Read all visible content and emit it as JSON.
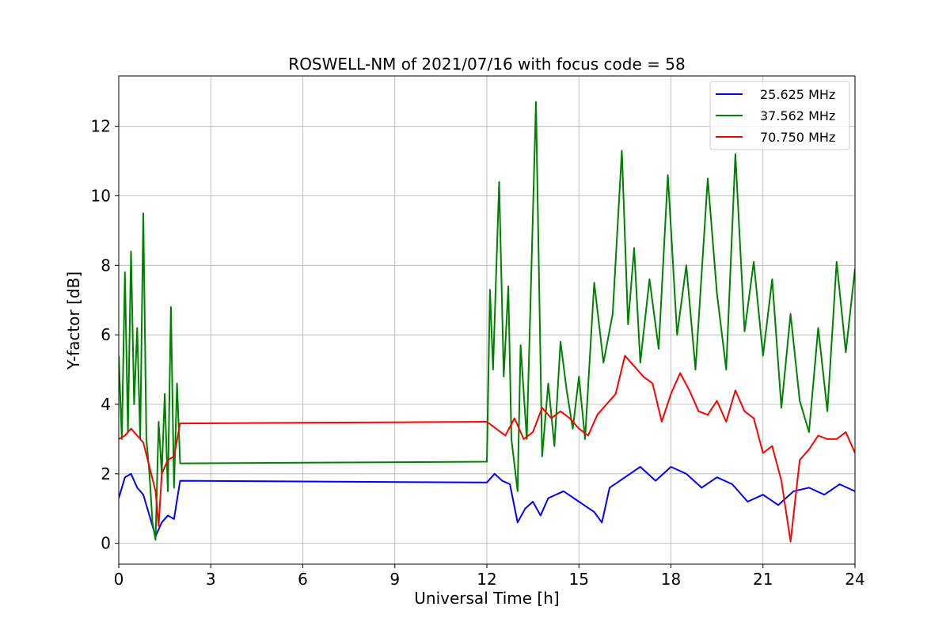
{
  "chart_data": {
    "type": "line",
    "title": "ROSWELL-NM of 2021/07/16 with focus code = 58",
    "xlabel": "Universal Time [h]",
    "ylabel": "Y-factor [dB]",
    "xlim": [
      0,
      24
    ],
    "ylim": [
      -0.6,
      13.45
    ],
    "xticks": [
      0,
      3,
      6,
      9,
      12,
      15,
      18,
      21,
      24
    ],
    "yticks": [
      0,
      2,
      4,
      6,
      8,
      10,
      12
    ],
    "grid": true,
    "legend_position": "top-right",
    "series": [
      {
        "name": "25.625 MHz",
        "color": "#0000ff",
        "x": [
          0.0,
          0.2,
          0.4,
          0.6,
          0.8,
          1.0,
          1.2,
          1.4,
          1.6,
          1.8,
          2.0,
          12.0,
          12.25,
          12.5,
          12.75,
          13.0,
          13.25,
          13.5,
          13.75,
          14.0,
          14.5,
          15.0,
          15.5,
          15.75,
          16.0,
          16.5,
          17.0,
          17.5,
          18.0,
          18.5,
          19.0,
          19.5,
          20.0,
          20.5,
          21.0,
          21.5,
          22.0,
          22.5,
          23.0,
          23.5,
          24.0
        ],
        "y": [
          1.3,
          1.9,
          2.0,
          1.6,
          1.4,
          0.8,
          0.2,
          0.6,
          0.8,
          0.7,
          1.8,
          1.75,
          2.0,
          1.8,
          1.7,
          0.6,
          1.0,
          1.2,
          0.8,
          1.3,
          1.5,
          1.2,
          0.9,
          0.6,
          1.6,
          1.9,
          2.2,
          1.8,
          2.2,
          2.0,
          1.6,
          1.9,
          1.7,
          1.2,
          1.4,
          1.1,
          1.5,
          1.6,
          1.4,
          1.7,
          1.5
        ]
      },
      {
        "name": "37.562 MHz",
        "color": "#008000",
        "x": [
          0.0,
          0.1,
          0.2,
          0.3,
          0.4,
          0.5,
          0.6,
          0.7,
          0.8,
          0.9,
          1.0,
          1.1,
          1.2,
          1.3,
          1.4,
          1.5,
          1.6,
          1.7,
          1.8,
          1.9,
          2.0,
          12.0,
          12.1,
          12.2,
          12.4,
          12.55,
          12.7,
          12.8,
          13.0,
          13.1,
          13.3,
          13.6,
          13.8,
          14.0,
          14.2,
          14.4,
          14.6,
          14.8,
          15.0,
          15.2,
          15.5,
          15.8,
          16.1,
          16.4,
          16.6,
          16.8,
          17.0,
          17.3,
          17.6,
          17.9,
          18.2,
          18.5,
          18.8,
          19.2,
          19.5,
          19.8,
          20.1,
          20.4,
          20.7,
          21.0,
          21.3,
          21.6,
          21.9,
          22.2,
          22.5,
          22.8,
          23.1,
          23.4,
          23.7,
          24.0
        ],
        "y": [
          5.4,
          3.0,
          7.8,
          3.2,
          8.4,
          4.0,
          6.2,
          3.0,
          9.5,
          3.0,
          2.0,
          0.6,
          0.1,
          3.5,
          2.0,
          4.3,
          1.5,
          6.8,
          1.6,
          4.6,
          2.3,
          2.35,
          7.3,
          5.0,
          10.4,
          4.8,
          7.4,
          3.0,
          1.5,
          5.7,
          3.0,
          12.7,
          2.5,
          4.6,
          2.8,
          5.8,
          4.4,
          3.3,
          4.8,
          3.0,
          7.5,
          5.2,
          6.6,
          11.3,
          6.3,
          8.5,
          5.2,
          7.6,
          5.6,
          10.6,
          6.0,
          8.0,
          5.0,
          10.5,
          7.2,
          5.0,
          11.2,
          6.1,
          8.1,
          5.4,
          7.6,
          3.9,
          6.6,
          4.1,
          3.2,
          6.2,
          3.8,
          8.1,
          5.5,
          7.9
        ]
      },
      {
        "name": "70.750 MHz",
        "color": "#ff0000",
        "x": [
          0.0,
          0.2,
          0.4,
          0.6,
          0.8,
          1.0,
          1.2,
          1.3,
          1.4,
          1.6,
          1.8,
          2.0,
          12.0,
          12.3,
          12.6,
          12.9,
          13.2,
          13.5,
          13.8,
          14.1,
          14.4,
          14.7,
          15.0,
          15.3,
          15.6,
          15.9,
          16.2,
          16.5,
          16.8,
          17.1,
          17.4,
          17.7,
          18.0,
          18.3,
          18.6,
          18.9,
          19.2,
          19.5,
          19.8,
          20.1,
          20.4,
          20.7,
          21.0,
          21.3,
          21.6,
          21.9,
          22.2,
          22.5,
          22.8,
          23.1,
          23.4,
          23.7,
          24.0
        ],
        "y": [
          3.0,
          3.1,
          3.3,
          3.1,
          2.9,
          2.2,
          1.5,
          0.5,
          2.0,
          2.4,
          2.5,
          3.45,
          3.5,
          3.3,
          3.1,
          3.6,
          3.0,
          3.2,
          3.9,
          3.6,
          3.8,
          3.6,
          3.3,
          3.1,
          3.7,
          4.0,
          4.3,
          5.4,
          5.1,
          4.8,
          4.6,
          3.5,
          4.3,
          4.9,
          4.4,
          3.8,
          3.7,
          4.1,
          3.5,
          4.4,
          3.8,
          3.6,
          2.6,
          2.8,
          1.8,
          0.05,
          2.4,
          2.7,
          3.1,
          3.0,
          3.0,
          3.2,
          2.6
        ]
      }
    ]
  }
}
